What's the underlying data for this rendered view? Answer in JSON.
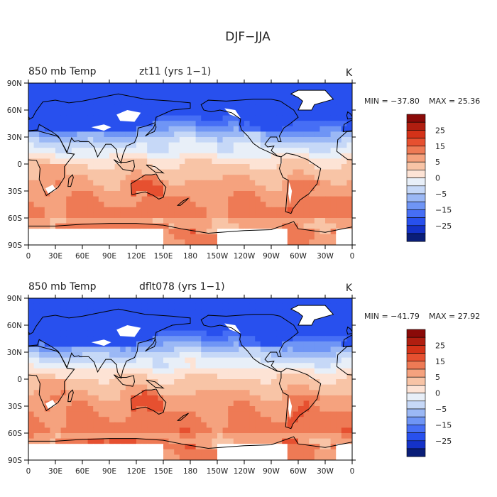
{
  "figure": {
    "title": "DJF−JJA"
  },
  "colors": {
    "levels": [
      -25,
      -20,
      -15,
      -10,
      -5,
      0,
      5,
      10,
      15,
      20,
      25
    ],
    "palette": [
      "#0a1e78",
      "#1432c8",
      "#2850ee",
      "#466ef5",
      "#6f95f5",
      "#9bb8f5",
      "#c6d8f7",
      "#e8eff8",
      "#fde3d5",
      "#f8c4a6",
      "#f5a27e",
      "#ee7a55",
      "#e65030",
      "#d43218",
      "#b01e10",
      "#8a0a08"
    ],
    "land_mask": "#ffffff",
    "coast": "#000000"
  },
  "chart_data": [
    {
      "type": "heatmap",
      "name": "top-panel",
      "left_title": "850 mb Temp",
      "case_title": "zt11 (yrs 1−1)",
      "units": "K",
      "min_label": "MIN = −37.80",
      "max_label": "MAX =  25.36",
      "min": -37.8,
      "max": 25.36,
      "x_ticks": [
        "0",
        "30E",
        "60E",
        "90E",
        "120E",
        "150E",
        "180",
        "150W",
        "120W",
        "90W",
        "60W",
        "30W",
        "0"
      ],
      "y_ticks": [
        "90N",
        "60N",
        "30N",
        "0",
        "30S",
        "60S",
        "90S"
      ],
      "colorbar_labels": [
        "25",
        "15",
        "5",
        "0",
        "−5",
        "−15",
        "−25"
      ]
    },
    {
      "type": "heatmap",
      "name": "bottom-panel",
      "left_title": "850 mb Temp",
      "case_title": "dflt078 (yrs 1−1)",
      "units": "K",
      "min_label": "MIN = −41.79",
      "max_label": "MAX =  27.92",
      "min": -41.79,
      "max": 27.92,
      "x_ticks": [
        "0",
        "30E",
        "60E",
        "90E",
        "120E",
        "150E",
        "180",
        "150W",
        "120W",
        "90W",
        "60W",
        "30W",
        "0"
      ],
      "y_ticks": [
        "90N",
        "60N",
        "30N",
        "0",
        "30S",
        "60S",
        "90S"
      ],
      "colorbar_labels": [
        "25",
        "15",
        "5",
        "0",
        "−5",
        "−15",
        "−25"
      ]
    }
  ]
}
